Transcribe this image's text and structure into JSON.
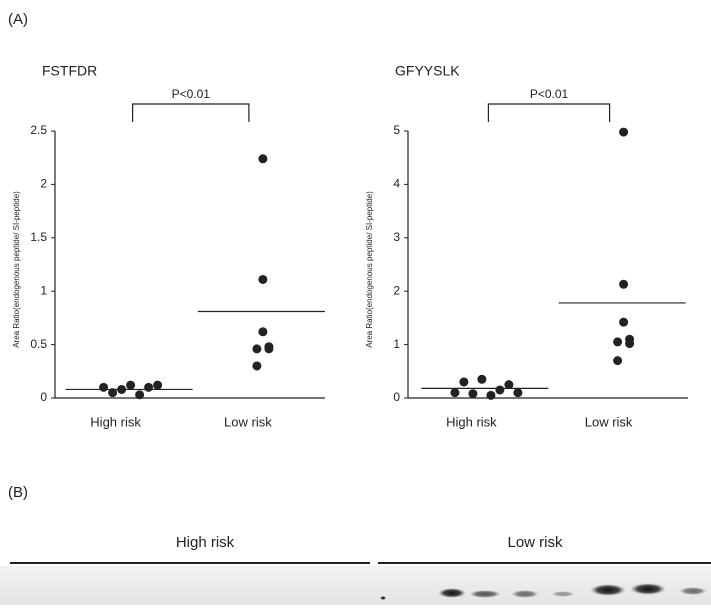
{
  "panel_labels": [
    "(A)",
    "(B)"
  ],
  "chart_data": [
    {
      "type": "dotplot",
      "title": "FSTFDR",
      "y_label": "Area Ratio(endogenous peptide/ SI-peptide)",
      "categories": [
        "High risk",
        "Low risk"
      ],
      "points": [
        [
          0.1,
          0.05,
          0.08,
          0.12,
          0.03,
          0.1,
          0.12
        ],
        [
          2.24,
          1.11,
          0.62,
          0.48,
          0.46,
          0.46,
          0.3
        ]
      ],
      "means": [
        0.08,
        0.81
      ],
      "annotation": "P<0.01",
      "color": "#222222",
      "ylim": [
        0,
        2.5
      ],
      "yticks": [
        0,
        0.5,
        1,
        1.5,
        2,
        2.5
      ]
    },
    {
      "type": "dotplot",
      "title": "GFYYSLK",
      "y_label": "Area Ratio(endogenous peptide/ SI-peptide)",
      "categories": [
        "High risk",
        "Low risk"
      ],
      "points": [
        [
          0.1,
          0.3,
          0.08,
          0.35,
          0.05,
          0.15,
          0.25,
          0.1
        ],
        [
          4.98,
          2.13,
          1.42,
          1.1,
          1.05,
          1.02,
          0.7
        ]
      ],
      "means": [
        0.18,
        1.78
      ],
      "annotation": "P<0.01",
      "color": "#222222",
      "ylim": [
        0,
        5
      ],
      "yticks": [
        0,
        1,
        2,
        3,
        4,
        5
      ]
    }
  ],
  "blot": {
    "groups": [
      "High risk",
      "Low risk"
    ]
  }
}
